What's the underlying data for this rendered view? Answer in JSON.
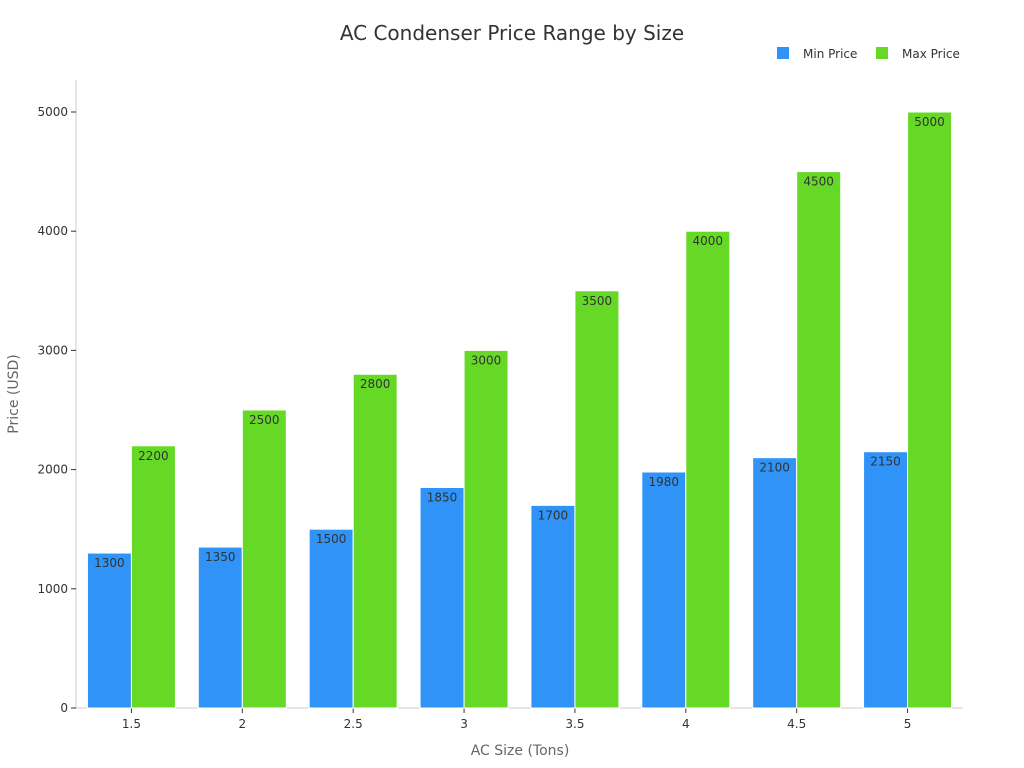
{
  "chart_data": {
    "type": "bar",
    "title": "AC Condenser Price Range by Size",
    "xlabel": "AC Size (Tons)",
    "ylabel": "Price (USD)",
    "categories": [
      "1.5",
      "2",
      "2.5",
      "3",
      "3.5",
      "4",
      "4.5",
      "5"
    ],
    "series": [
      {
        "name": "Min Price",
        "color": "#3093f7",
        "values": [
          1300,
          1350,
          1500,
          1850,
          1700,
          1980,
          2100,
          2150
        ]
      },
      {
        "name": "Max Price",
        "color": "#66d927",
        "values": [
          2200,
          2500,
          2800,
          3000,
          3500,
          4000,
          4500,
          5000
        ]
      }
    ],
    "ylim": [
      0,
      5250
    ],
    "yticks": [
      0,
      1000,
      2000,
      3000,
      4000,
      5000
    ],
    "legend_position": "top-right",
    "grid": false
  }
}
